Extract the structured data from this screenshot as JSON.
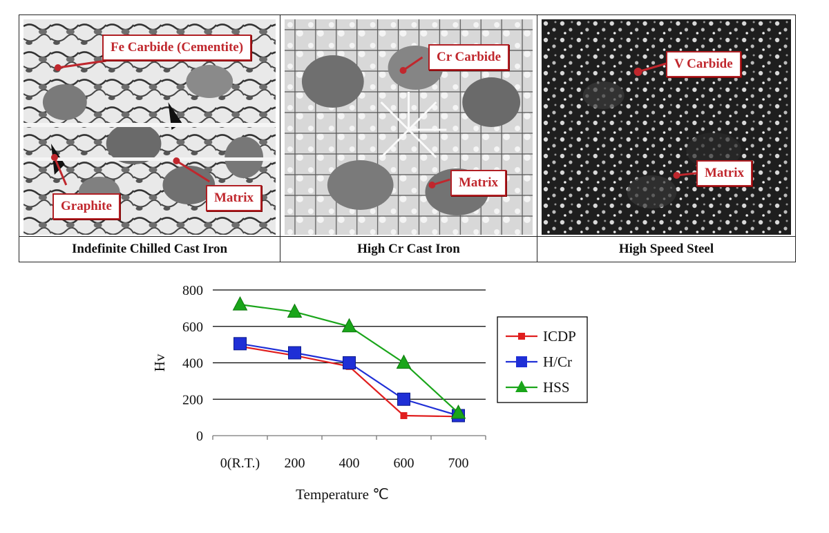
{
  "panels": [
    {
      "caption": "Indefinite Chilled Cast Iron",
      "labels": [
        "Fe Carbide (Cementite)",
        "Graphite",
        "Matrix"
      ]
    },
    {
      "caption": "High Cr Cast Iron",
      "labels": [
        "Cr Carbide",
        "Matrix"
      ]
    },
    {
      "caption": "High Speed Steel",
      "labels": [
        "V Carbide",
        "Matrix"
      ]
    }
  ],
  "colors": {
    "label_red": "#c0272d",
    "icdp": "#e01e1e",
    "hcr": "#1f2fd6",
    "hss": "#1aa51a"
  },
  "chart_data": {
    "type": "line",
    "categories": [
      "0(R.T.)",
      "200",
      "400",
      "600",
      "700"
    ],
    "ylabel": "Hv",
    "xlabel": "Temperature ℃",
    "ylim": [
      0,
      800
    ],
    "yticks": [
      "0",
      "200",
      "400",
      "600",
      "800"
    ],
    "grid": "horizontal",
    "legend_position": "right",
    "series": [
      {
        "name": "ICDP",
        "marker": "square-small",
        "values": [
          490,
          440,
          380,
          110,
          105
        ]
      },
      {
        "name": "H/Cr",
        "marker": "square",
        "values": [
          505,
          455,
          400,
          200,
          110
        ]
      },
      {
        "name": "HSS",
        "marker": "triangle",
        "values": [
          720,
          680,
          600,
          400,
          125
        ]
      }
    ]
  }
}
